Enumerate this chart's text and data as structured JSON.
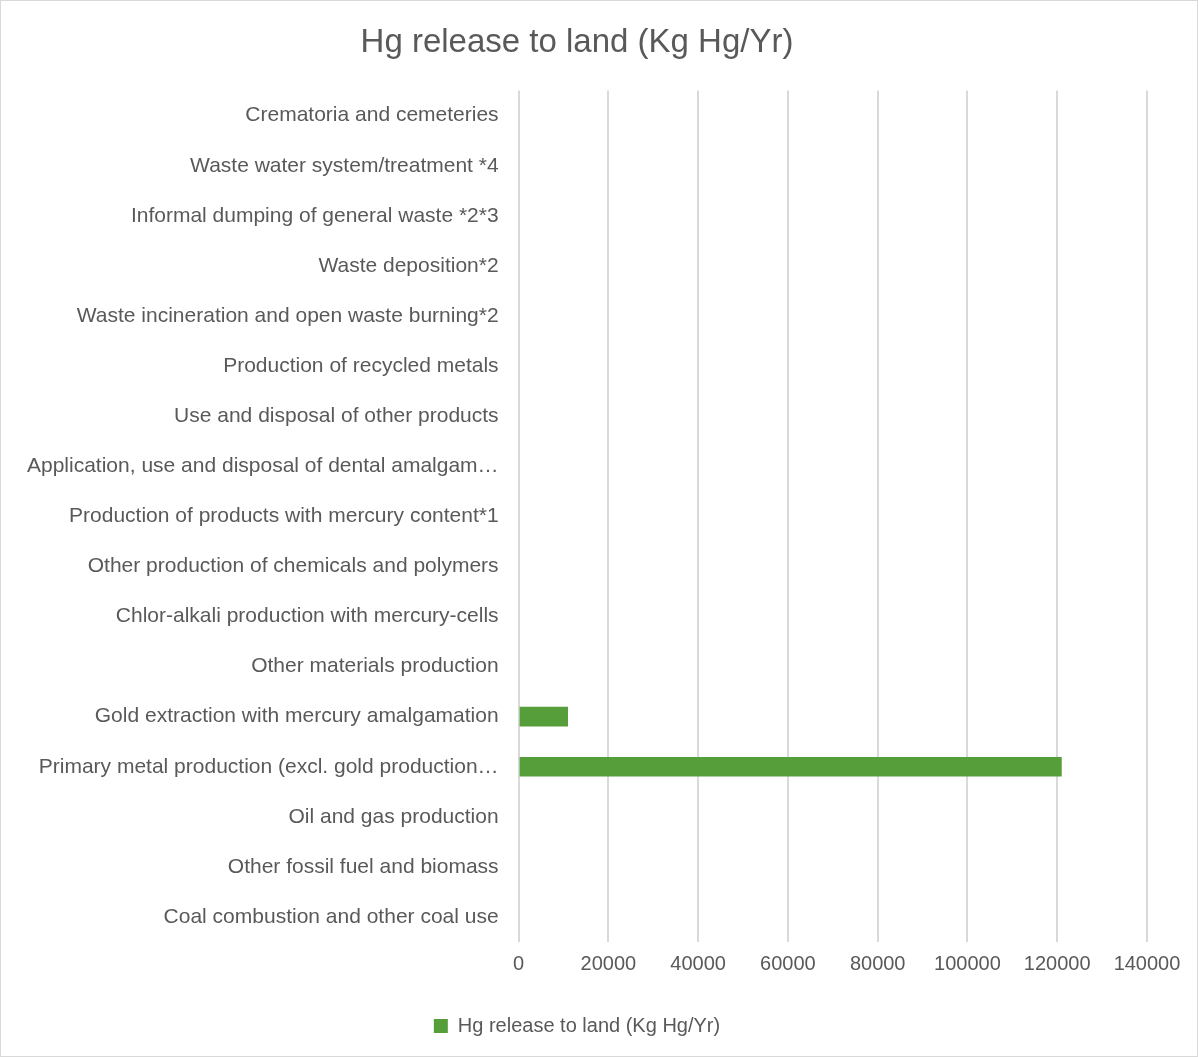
{
  "chart_data": {
    "type": "bar",
    "orientation": "horizontal",
    "title": "Hg release to land (Kg Hg/Yr)",
    "categories": [
      "Crematoria and cemeteries",
      "Waste water system/treatment *4",
      "Informal dumping of general waste *2*3",
      "Waste deposition*2",
      "Waste incineration and open waste burning*2",
      "Production of recycled metals",
      "Use and disposal of other products",
      "Application, use and disposal of dental amalgam…",
      "Production of products with mercury content*1",
      "Other production of chemicals and polymers",
      "Chlor-alkali production with mercury-cells",
      "Other materials production",
      "Gold extraction with mercury amalgamation",
      "Primary metal production (excl. gold production…",
      "Oil and gas production",
      "Other fossil fuel and biomass",
      "Coal combustion and other coal use"
    ],
    "series": [
      {
        "name": "Hg release to land (Kg Hg/Yr)",
        "color": "#559e3a",
        "values": [
          0,
          0,
          0,
          0,
          0,
          0,
          0,
          0,
          0,
          0,
          0,
          0,
          11000,
          121000,
          0,
          0,
          0
        ]
      }
    ],
    "xlim": [
      0,
      140000
    ],
    "xticks": [
      0,
      20000,
      40000,
      60000,
      80000,
      100000,
      120000,
      140000
    ],
    "grid": "x",
    "legend": "bottom"
  }
}
